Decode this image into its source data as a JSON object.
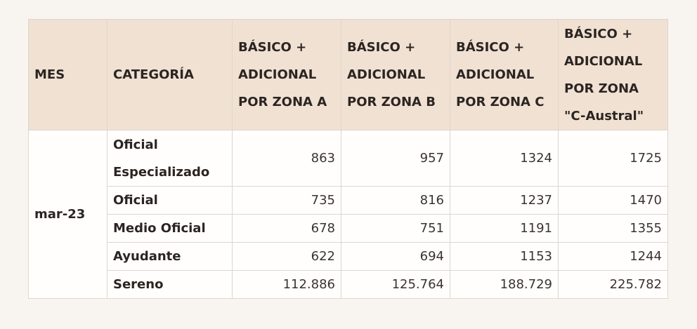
{
  "table": {
    "headers": [
      "MES",
      "CATEGORÍA",
      "BÁSICO + ADICIONAL POR ZONA A",
      "BÁSICO + ADICIONAL POR ZONA B",
      "BÁSICO + ADICIONAL POR ZONA C",
      "BÁSICO + ADICIONAL POR ZONA \"C-Austral\""
    ],
    "month": "mar-23",
    "rows": [
      {
        "category": "Oficial Especializado",
        "values": [
          "863",
          "957",
          "1324",
          "1725"
        ]
      },
      {
        "category": "Oficial",
        "values": [
          "735",
          "816",
          "1237",
          "1470"
        ]
      },
      {
        "category": "Medio Oficial",
        "values": [
          "678",
          "751",
          "1191",
          "1355"
        ]
      },
      {
        "category": "Ayudante",
        "values": [
          "622",
          "694",
          "1153",
          "1244"
        ]
      },
      {
        "category": "Sereno",
        "values": [
          "112.886",
          "125.764",
          "188.729",
          "225.782"
        ]
      }
    ]
  }
}
